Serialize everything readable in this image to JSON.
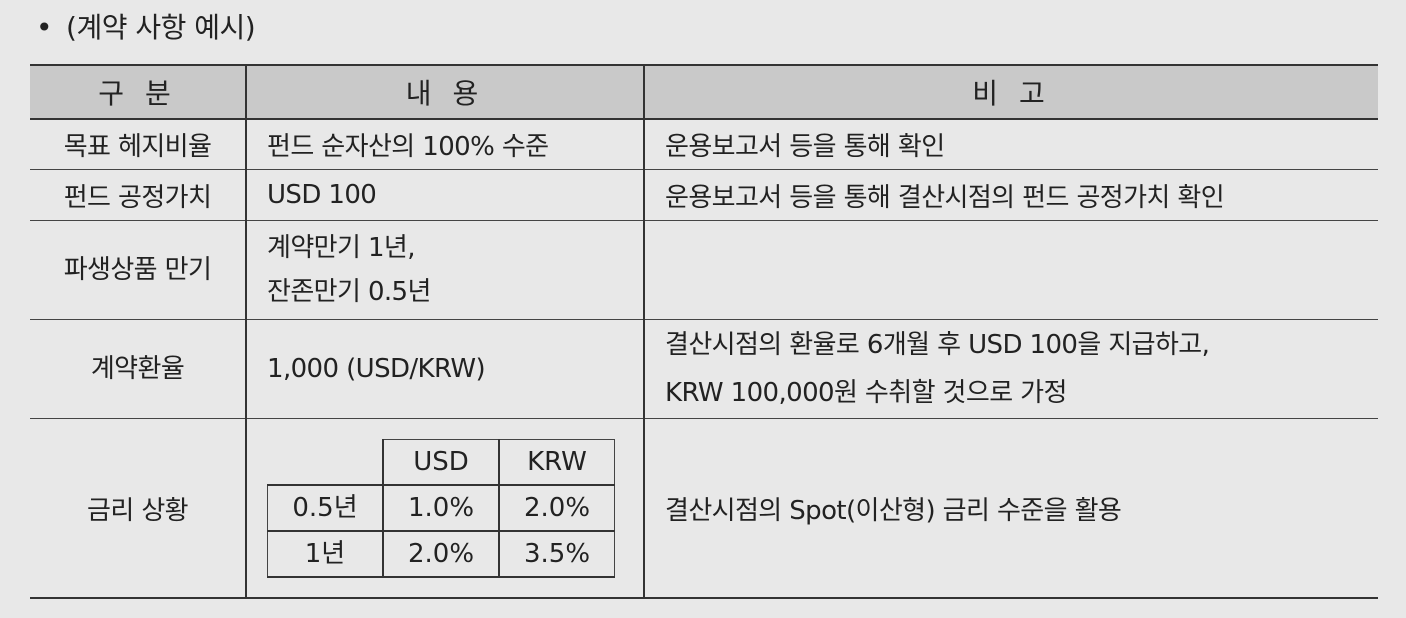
{
  "heading": {
    "bullet": "•",
    "text": "(계약 사항 예시)"
  },
  "table": {
    "headers": [
      "구 분",
      "내 용",
      "비 고"
    ],
    "rows": [
      {
        "label": "목표 헤지비율",
        "content": "펀드 순자산의 100% 수준",
        "note": "운용보고서 등을 통해 확인"
      },
      {
        "label": "펀드 공정가치",
        "content": "USD 100",
        "note": "운용보고서 등을 통해 결산시점의 펀드 공정가치 확인"
      },
      {
        "label": "파생상품 만기",
        "content_lines": [
          "계약만기 1년,",
          "잔존만기 0.5년"
        ],
        "note": ""
      },
      {
        "label": "계약환율",
        "content": "1,000 (USD/KRW)",
        "note_lines": [
          "결산시점의 환율로 6개월 후 USD 100을 지급하고,",
          "KRW 100,000원 수취할 것으로 가정"
        ]
      },
      {
        "label": "금리 상황",
        "note": "결산시점의 Spot(이산형) 금리 수준을 활용",
        "rates": {
          "columns": [
            "USD",
            "KRW"
          ],
          "rows": [
            {
              "tenor": "0.5년",
              "values": [
                "1.0%",
                "2.0%"
              ]
            },
            {
              "tenor": "1년",
              "values": [
                "2.0%",
                "3.5%"
              ]
            }
          ]
        }
      }
    ]
  }
}
